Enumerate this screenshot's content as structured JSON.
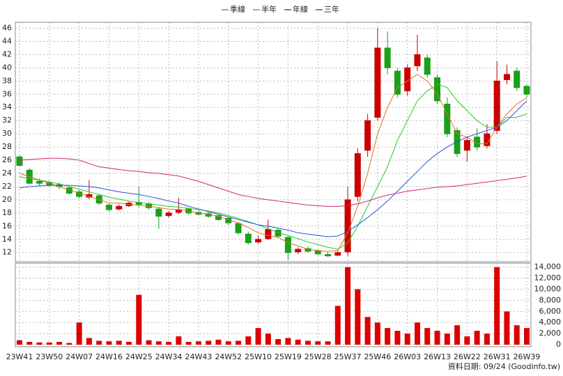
{
  "chart_data": {
    "type": "candlestick",
    "categories": [
      "23W41",
      null,
      null,
      "23W50",
      null,
      null,
      "24W07",
      null,
      null,
      "24W16",
      null,
      null,
      "24W25",
      null,
      null,
      "24W34",
      null,
      null,
      "24W43",
      null,
      null,
      "24W52",
      null,
      null,
      "25W10",
      null,
      null,
      "25W19",
      null,
      null,
      "25W28",
      null,
      null,
      "25W37",
      null,
      null,
      "25W46",
      null,
      null,
      "26W03",
      null,
      null,
      "26W13",
      null,
      null,
      "26W22",
      null,
      null,
      "26W31",
      null,
      null,
      "26W39"
    ],
    "open": [
      26.5,
      24.5,
      22.8,
      22.6,
      22.3,
      21.8,
      21.2,
      20.4,
      20.6,
      19.2,
      18.6,
      19.1,
      19.6,
      19.4,
      18.6,
      17.6,
      18.1,
      18.6,
      18.1,
      17.9,
      17.6,
      17.2,
      16.4,
      14.8,
      13.6,
      14.1,
      15.4,
      14.3,
      12.1,
      12.6,
      12.3,
      11.7,
      11.6,
      12.1,
      20.5,
      27.5,
      32.5,
      43.0,
      39.5,
      36.5,
      40.3,
      41.5,
      38.5,
      34.5,
      30.5,
      27.5,
      29.5,
      28.2,
      30.5,
      38.2,
      39.5,
      37.2
    ],
    "high": [
      26.8,
      24.8,
      23.2,
      22.9,
      22.6,
      22.0,
      21.5,
      23.0,
      20.9,
      19.5,
      19.3,
      19.8,
      22.0,
      19.7,
      18.9,
      18.3,
      20.3,
      18.8,
      18.3,
      18.1,
      17.8,
      17.4,
      16.6,
      15.2,
      14.6,
      17.0,
      15.7,
      14.5,
      12.8,
      12.9,
      12.5,
      12.1,
      12.4,
      22.0,
      27.8,
      33.0,
      46.0,
      45.5,
      40.0,
      40.5,
      45.0,
      42.0,
      39.0,
      35.5,
      31.0,
      29.5,
      30.8,
      31.5,
      41.0,
      40.5,
      40.0,
      37.5
    ],
    "low": [
      25.0,
      22.3,
      22.1,
      21.9,
      21.6,
      20.8,
      20.2,
      20.1,
      19.2,
      18.2,
      18.4,
      18.9,
      18.9,
      18.5,
      15.6,
      17.3,
      17.8,
      17.7,
      17.6,
      17.3,
      16.8,
      16.2,
      14.7,
      13.2,
      13.3,
      13.9,
      14.2,
      10.8,
      11.8,
      12.0,
      11.6,
      11.3,
      11.4,
      11.5,
      19.8,
      26.5,
      32.0,
      39.0,
      35.5,
      35.8,
      39.5,
      38.5,
      34.5,
      29.5,
      26.5,
      25.8,
      27.5,
      27.8,
      30.0,
      37.5,
      36.5,
      35.5
    ],
    "close": [
      25.2,
      22.5,
      22.5,
      22.2,
      22.0,
      21.0,
      20.5,
      20.8,
      19.5,
      18.5,
      19.0,
      19.5,
      19.3,
      18.8,
      17.5,
      18.0,
      18.5,
      18.0,
      17.8,
      17.5,
      17.0,
      16.5,
      15.0,
      13.5,
      14.0,
      15.5,
      14.5,
      12.0,
      12.5,
      12.2,
      11.8,
      11.5,
      12.0,
      20.0,
      27.0,
      32.0,
      43.0,
      40.0,
      36.0,
      40.0,
      42.0,
      39.0,
      35.0,
      30.0,
      27.0,
      29.0,
      28.0,
      30.0,
      38.0,
      39.0,
      37.0,
      36.0
    ],
    "up_color": "#cc0000",
    "down_color": "#1aa01a",
    "series": [
      {
        "name": "季線",
        "color": "#e07020",
        "values": [
          24,
          23.5,
          23,
          22.5,
          22,
          21.5,
          21,
          20.5,
          20,
          19.5,
          19.5,
          19.3,
          19.2,
          19,
          18.8,
          18.6,
          18.5,
          18.3,
          18,
          17.8,
          17.5,
          17,
          16.5,
          15.8,
          15,
          14.6,
          14.3,
          13.5,
          13,
          12.5,
          12.3,
          12.2,
          12.3,
          15,
          19,
          24,
          30,
          34,
          37,
          38,
          39,
          38,
          36,
          33,
          30,
          29.5,
          28.5,
          28.5,
          31,
          33,
          34.5,
          35.5
        ]
      },
      {
        "name": "半年",
        "color": "#22cc22",
        "values": [
          23.5,
          23.2,
          23,
          22.7,
          22.4,
          22,
          21.6,
          21.2,
          20.8,
          20.4,
          20.1,
          19.8,
          19.6,
          19.4,
          19.2,
          19,
          18.9,
          18.7,
          18.5,
          18.3,
          18,
          17.6,
          17.2,
          16.7,
          16.2,
          15.6,
          15,
          14.6,
          14.1,
          13.6,
          13.2,
          12.8,
          12.5,
          13.5,
          16,
          19,
          22,
          25,
          29,
          32,
          35,
          36.5,
          37.5,
          37,
          35,
          33.5,
          32,
          31,
          31,
          32.5,
          32.5,
          33
        ]
      },
      {
        "name": "年線",
        "color": "#2255dd",
        "values": [
          21.8,
          22,
          22.1,
          22.2,
          22.2,
          22.2,
          22.1,
          22,
          21.8,
          21.5,
          21.2,
          21,
          20.8,
          20.5,
          20.2,
          19.8,
          19.5,
          19,
          18.6,
          18.2,
          17.8,
          17.4,
          17,
          16.6,
          16.2,
          16,
          15.7,
          15.4,
          15,
          14.8,
          14.6,
          14.4,
          14.5,
          15.2,
          16.2,
          17.3,
          18.5,
          19.8,
          21.3,
          22.8,
          24.3,
          25.8,
          27,
          28,
          28.8,
          29.5,
          30,
          30.5,
          31,
          32,
          33.5,
          35
        ]
      },
      {
        "name": "三年",
        "color": "#cc2277",
        "values": [
          26,
          26.1,
          26.2,
          26.3,
          26.3,
          26.2,
          26,
          25.5,
          25,
          24.8,
          24.6,
          24.4,
          24.3,
          24.1,
          24,
          23.8,
          23.6,
          23.2,
          22.8,
          22.3,
          21.8,
          21.3,
          20.8,
          20.5,
          20.2,
          20,
          19.8,
          19.6,
          19.4,
          19.2,
          19.1,
          19,
          19,
          19.1,
          19.4,
          19.8,
          20.3,
          20.7,
          21,
          21.3,
          21.5,
          21.7,
          21.9,
          22,
          22.1,
          22.3,
          22.5,
          22.7,
          22.9,
          23.1,
          23.3,
          23.6
        ]
      }
    ],
    "ylim": [
      10.6,
      46.9
    ],
    "yticks": [
      12,
      14,
      16,
      18,
      20,
      22,
      24,
      26,
      28,
      30,
      32,
      34,
      36,
      38,
      40,
      42,
      44,
      46
    ],
    "grid": true,
    "volume": {
      "color": "#dd0000",
      "values": [
        800,
        500,
        400,
        400,
        500,
        300,
        4000,
        1200,
        700,
        600,
        700,
        500,
        9000,
        800,
        600,
        500,
        1500,
        500,
        600,
        700,
        900,
        600,
        700,
        1500,
        3000,
        2000,
        1000,
        1200,
        900,
        700,
        600,
        600,
        7000,
        14000,
        10000,
        5000,
        4000,
        3000,
        2500,
        2000,
        4000,
        3000,
        2500,
        2000,
        3500,
        1500,
        2500,
        2000,
        14000,
        6000,
        3500,
        3000
      ],
      "ylim": [
        0,
        14200
      ],
      "yticks": [
        0,
        {
          "value": 2000,
          "label": "2,000"
        },
        {
          "value": 4000,
          "label": "4,000"
        },
        {
          "value": 6000,
          "label": "6,000"
        },
        {
          "value": 8000,
          "label": "8,000"
        },
        {
          "value": 10000,
          "label": "10,000"
        },
        {
          "value": 12000,
          "label": "12,000"
        },
        {
          "value": 14000,
          "label": "14,000"
        }
      ]
    },
    "footer": "資料日期: 09/24  (Goodinfo.tw)"
  }
}
